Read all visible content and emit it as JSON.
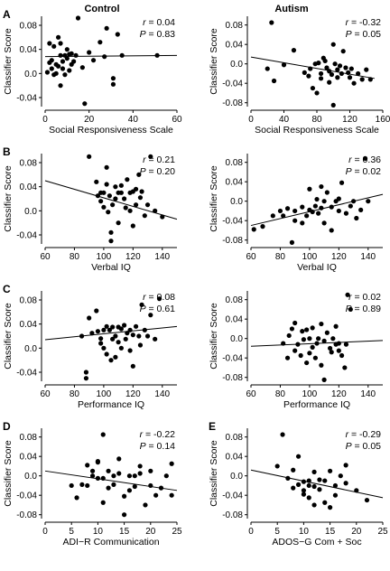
{
  "columns": [
    "Control",
    "Autism"
  ],
  "chart_data": [
    {
      "type": "scatter",
      "label": "A",
      "column": 0,
      "row": 0,
      "xlabel": "Social Responsiveness Scale",
      "ylabel": "Classifier Score",
      "xlim": [
        0,
        60
      ],
      "ylim": [
        -0.055,
        0.095
      ],
      "xticks": [
        0,
        20,
        40,
        60
      ],
      "yticks": [
        -0.04,
        0,
        0.04,
        0.08
      ],
      "ytick_labels": [
        "-0.04",
        "0.0",
        "0.04",
        "0.08"
      ],
      "r": "0.04",
      "p": "0.83",
      "fit": {
        "x": [
          0,
          60
        ],
        "y": [
          0.028,
          0.03
        ]
      },
      "points": {
        "x": [
          1,
          2,
          2,
          3,
          3,
          4,
          4,
          5,
          5,
          6,
          6,
          7,
          7,
          7,
          8,
          8,
          9,
          9,
          10,
          10,
          11,
          11,
          12,
          12,
          13,
          14,
          15,
          17,
          18,
          20,
          22,
          25,
          27,
          28,
          31,
          31,
          33,
          35,
          51
        ],
        "y": [
          0.002,
          0.05,
          0.018,
          0.022,
          0.008,
          -0.002,
          0.045,
          0.015,
          0.0,
          0.012,
          0.06,
          0.03,
          0.05,
          -0.02,
          0.02,
          0.008,
          0.03,
          -0.002,
          0.025,
          0.04,
          0.032,
          0.005,
          0.033,
          0.015,
          0.02,
          0.03,
          0.092,
          0.01,
          -0.05,
          0.035,
          0.022,
          0.052,
          0.028,
          0.075,
          -0.018,
          -0.008,
          0.065,
          0.03,
          0.03
        ]
      }
    },
    {
      "type": "scatter",
      "label": "",
      "column": 1,
      "row": 0,
      "xlabel": "Social Responsiveness Scale",
      "ylabel": "Classifier Score",
      "xlim": [
        0,
        160
      ],
      "ylim": [
        -0.088,
        0.098
      ],
      "xticks": [
        0,
        40,
        80,
        120,
        160
      ],
      "yticks": [
        -0.08,
        -0.04,
        0,
        0.04,
        0.08
      ],
      "ytick_labels": [
        "-0.08",
        "-0.04",
        "0.0",
        "0.04",
        "0.08"
      ],
      "r": "-0.32",
      "p": "0.05",
      "fit": {
        "x": [
          0,
          150
        ],
        "y": [
          0.014,
          -0.03
        ]
      },
      "points": {
        "x": [
          20,
          25,
          28,
          40,
          52,
          65,
          70,
          72,
          75,
          78,
          80,
          82,
          85,
          85,
          88,
          90,
          92,
          95,
          95,
          98,
          100,
          100,
          102,
          105,
          105,
          108,
          110,
          112,
          115,
          118,
          120,
          122,
          125,
          130,
          135,
          140,
          145
        ],
        "y": [
          -0.01,
          0.085,
          -0.035,
          -0.002,
          0.028,
          -0.018,
          -0.025,
          -0.01,
          -0.05,
          0.0,
          -0.06,
          0.002,
          -0.02,
          -0.03,
          0.012,
          0.006,
          -0.008,
          -0.038,
          -0.015,
          -0.022,
          -0.085,
          0.04,
          0.0,
          -0.028,
          -0.012,
          -0.004,
          -0.02,
          0.026,
          -0.008,
          -0.018,
          -0.028,
          -0.01,
          -0.04,
          -0.02,
          -0.032,
          -0.012,
          -0.032
        ]
      }
    },
    {
      "type": "scatter",
      "label": "B",
      "column": 0,
      "row": 1,
      "xlabel": "Verbal IQ",
      "ylabel": "Classifier Score",
      "xlim": [
        60,
        150
      ],
      "ylim": [
        -0.055,
        0.095
      ],
      "xticks": [
        60,
        80,
        100,
        120,
        140
      ],
      "yticks": [
        -0.04,
        0,
        0.04,
        0.08
      ],
      "ytick_labels": [
        "-0.04",
        "0.0",
        "0.04",
        "0.08"
      ],
      "r": "0.21",
      "p": "0.20",
      "fit": {
        "x": [
          60,
          150
        ],
        "y": [
          0.05,
          -0.014
        ]
      },
      "points": {
        "x": [
          90,
          95,
          96,
          98,
          98,
          100,
          100,
          102,
          102,
          103,
          104,
          105,
          105,
          106,
          108,
          108,
          110,
          110,
          112,
          112,
          114,
          115,
          116,
          118,
          118,
          120,
          120,
          122,
          122,
          124,
          125,
          126,
          128,
          130,
          132,
          135,
          140
        ],
        "y": [
          0.09,
          0.048,
          0.025,
          0.03,
          0.016,
          0.03,
          0.006,
          0.072,
          0.044,
          -0.002,
          0.025,
          -0.05,
          -0.036,
          0.01,
          0.04,
          0.02,
          0.03,
          -0.02,
          0.042,
          0.03,
          0.02,
          0.005,
          0.052,
          0.03,
          0.0,
          0.032,
          -0.025,
          0.036,
          0.01,
          0.06,
          0.022,
          0.032,
          -0.008,
          0.01,
          0.09,
          0.0,
          -0.01
        ]
      }
    },
    {
      "type": "scatter",
      "label": "",
      "column": 1,
      "row": 1,
      "xlabel": "Verbal IQ",
      "ylabel": "Classifier Score",
      "xlim": [
        60,
        150
      ],
      "ylim": [
        -0.088,
        0.098
      ],
      "xticks": [
        60,
        80,
        100,
        120,
        140
      ],
      "yticks": [
        -0.08,
        -0.04,
        0,
        0.04,
        0.08
      ],
      "ytick_labels": [
        "-0.08",
        "-0.04",
        "0.0",
        "0.04",
        "0.08"
      ],
      "r": "0.36",
      "p": "0.02",
      "fit": {
        "x": [
          60,
          150
        ],
        "y": [
          -0.05,
          0.014
        ]
      },
      "points": {
        "x": [
          62,
          68,
          75,
          80,
          82,
          85,
          88,
          90,
          90,
          95,
          95,
          98,
          100,
          100,
          102,
          104,
          105,
          106,
          108,
          108,
          110,
          110,
          112,
          115,
          115,
          118,
          120,
          120,
          122,
          125,
          128,
          130,
          132,
          135,
          138,
          140
        ],
        "y": [
          -0.058,
          -0.052,
          -0.03,
          -0.02,
          -0.03,
          -0.015,
          -0.085,
          -0.02,
          -0.04,
          -0.012,
          -0.045,
          -0.03,
          -0.018,
          0.025,
          -0.022,
          -0.01,
          0.004,
          -0.025,
          0.03,
          -0.014,
          0.0,
          -0.045,
          0.018,
          -0.012,
          -0.06,
          0.0,
          -0.02,
          0.005,
          0.038,
          -0.025,
          -0.01,
          0.0,
          -0.035,
          -0.018,
          0.088,
          0.0
        ]
      }
    },
    {
      "type": "scatter",
      "label": "C",
      "column": 0,
      "row": 2,
      "xlabel": "Performance IQ",
      "ylabel": "Classifier Score",
      "xlim": [
        60,
        150
      ],
      "ylim": [
        -0.055,
        0.095
      ],
      "xticks": [
        60,
        80,
        100,
        120,
        140
      ],
      "yticks": [
        -0.04,
        0,
        0.04,
        0.08
      ],
      "ytick_labels": [
        "-0.04",
        "0.0",
        "0.04",
        "0.08"
      ],
      "r": "0.08",
      "p": "0.61",
      "fit": {
        "x": [
          60,
          150
        ],
        "y": [
          0.014,
          0.036
        ]
      },
      "points": {
        "x": [
          85,
          88,
          88,
          90,
          92,
          95,
          96,
          98,
          98,
          100,
          100,
          102,
          102,
          104,
          105,
          106,
          106,
          108,
          108,
          110,
          110,
          112,
          112,
          114,
          115,
          116,
          118,
          118,
          120,
          120,
          122,
          124,
          125,
          126,
          128,
          130,
          132,
          135,
          138
        ],
        "y": [
          0.02,
          -0.05,
          -0.04,
          0.05,
          0.025,
          0.062,
          0.028,
          0.016,
          0.008,
          0.03,
          0.0,
          0.036,
          -0.01,
          0.03,
          -0.02,
          0.015,
          0.035,
          0.02,
          -0.015,
          0.035,
          0.01,
          0.032,
          0.0,
          0.038,
          0.015,
          0.025,
          -0.004,
          0.03,
          0.022,
          -0.03,
          0.036,
          0.02,
          0.005,
          0.072,
          0.03,
          0.02,
          0.055,
          0.015,
          0.082
        ]
      }
    },
    {
      "type": "scatter",
      "label": "",
      "column": 1,
      "row": 2,
      "xlabel": "Performance IQ",
      "ylabel": "Classifier Score",
      "xlim": [
        60,
        150
      ],
      "ylim": [
        -0.088,
        0.098
      ],
      "xticks": [
        60,
        80,
        100,
        120,
        140
      ],
      "yticks": [
        -0.08,
        -0.04,
        0,
        0.04,
        0.08
      ],
      "ytick_labels": [
        "-0.08",
        "-0.04",
        "0.0",
        "0.04",
        "0.08"
      ],
      "r": "0.02",
      "p": "0.89",
      "fit": {
        "x": [
          60,
          150
        ],
        "y": [
          -0.016,
          -0.004
        ]
      },
      "points": {
        "x": [
          82,
          85,
          86,
          88,
          90,
          90,
          92,
          94,
          95,
          96,
          98,
          98,
          100,
          100,
          102,
          102,
          104,
          105,
          106,
          108,
          108,
          110,
          110,
          112,
          114,
          115,
          116,
          118,
          118,
          120,
          120,
          122,
          124,
          125,
          126,
          128
        ],
        "y": [
          -0.01,
          -0.04,
          0.006,
          0.02,
          -0.025,
          0.032,
          -0.012,
          -0.035,
          0.015,
          -0.002,
          -0.05,
          0.018,
          0.0,
          -0.03,
          0.022,
          -0.018,
          -0.04,
          -0.01,
          0.0,
          0.03,
          -0.055,
          -0.005,
          -0.085,
          0.012,
          -0.02,
          -0.028,
          0.0,
          0.025,
          -0.012,
          -0.01,
          -0.025,
          -0.035,
          -0.06,
          -0.012,
          0.09,
          0.06
        ]
      }
    },
    {
      "type": "scatter",
      "label": "D",
      "column": 0,
      "row": 3,
      "xlabel": "ADI−R Communication",
      "ylabel": "Classifier Score",
      "xlim": [
        0,
        25
      ],
      "ylim": [
        -0.088,
        0.098
      ],
      "xticks": [
        0,
        5,
        10,
        15,
        20,
        25
      ],
      "yticks": [
        -0.08,
        -0.04,
        0,
        0.04,
        0.08
      ],
      "ytick_labels": [
        "-0.08",
        "-0.04",
        "0.0",
        "0.04",
        "0.08"
      ],
      "r": "-0.22",
      "p": "0.14",
      "fit": {
        "x": [
          0,
          25
        ],
        "y": [
          0.01,
          -0.03
        ]
      },
      "points": {
        "x": [
          5,
          6,
          7,
          8,
          8,
          9,
          9,
          10,
          10,
          10,
          11,
          11,
          11,
          12,
          12,
          13,
          13,
          14,
          14,
          15,
          15,
          16,
          16,
          17,
          17,
          18,
          18,
          19,
          20,
          20,
          21,
          22,
          23,
          24,
          24
        ],
        "y": [
          -0.02,
          -0.045,
          -0.018,
          0.022,
          -0.02,
          0.0,
          0.01,
          -0.005,
          0.03,
          0.028,
          0.085,
          -0.005,
          -0.055,
          -0.025,
          0.01,
          -0.018,
          0.0,
          0.005,
          0.035,
          -0.042,
          -0.08,
          -0.03,
          0.0,
          0.0,
          -0.022,
          0.005,
          0.02,
          -0.06,
          -0.02,
          0.01,
          -0.04,
          -0.025,
          0.0,
          0.025,
          -0.04
        ]
      }
    },
    {
      "type": "scatter",
      "label": "E",
      "column": 1,
      "row": 3,
      "xlabel": "ADOS−G Com + Soc",
      "ylabel": "Classifier Score",
      "xlim": [
        0,
        25
      ],
      "ylim": [
        -0.088,
        0.098
      ],
      "xticks": [
        0,
        5,
        10,
        15,
        20,
        25
      ],
      "yticks": [
        -0.08,
        -0.04,
        0,
        0.04,
        0.08
      ],
      "ytick_labels": [
        "-0.08",
        "-0.04",
        "0.0",
        "0.04",
        "0.08"
      ],
      "r": "-0.29",
      "p": "0.05",
      "fit": {
        "x": [
          0,
          25
        ],
        "y": [
          0.012,
          -0.045
        ]
      },
      "points": {
        "x": [
          5,
          6,
          7,
          8,
          8,
          9,
          9,
          10,
          10,
          10,
          11,
          11,
          11,
          12,
          12,
          12,
          13,
          13,
          14,
          14,
          15,
          15,
          16,
          16,
          17,
          18,
          18,
          20,
          22
        ],
        "y": [
          0.02,
          0.085,
          -0.005,
          -0.025,
          0.012,
          -0.018,
          0.04,
          -0.012,
          -0.03,
          -0.038,
          -0.01,
          -0.02,
          -0.045,
          -0.022,
          0.008,
          -0.06,
          -0.008,
          -0.028,
          -0.055,
          -0.01,
          -0.065,
          0.01,
          -0.02,
          -0.04,
          0.0,
          0.022,
          -0.015,
          -0.03,
          -0.05
        ]
      }
    }
  ]
}
